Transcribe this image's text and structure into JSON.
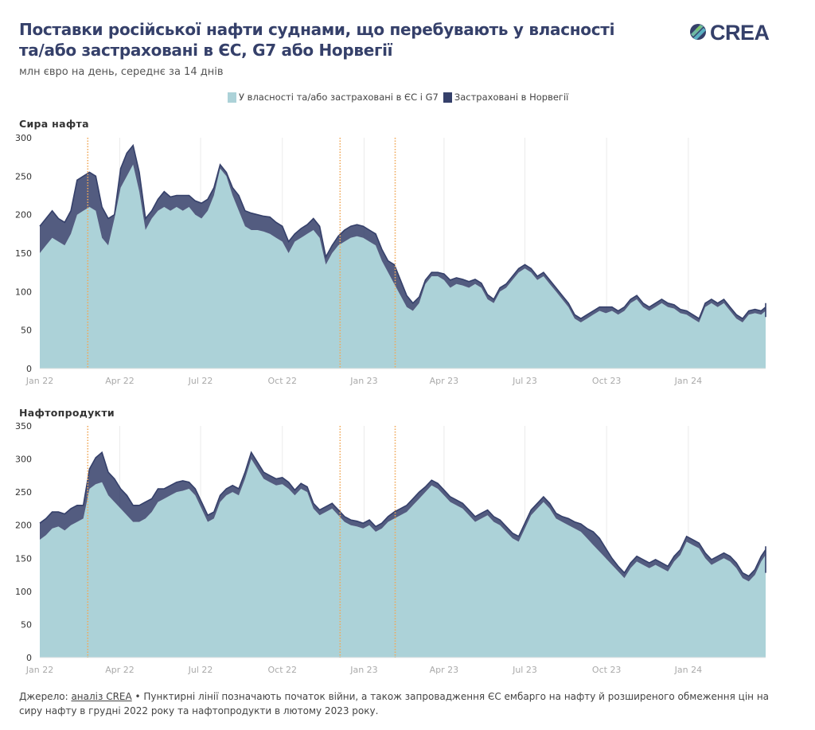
{
  "header": {
    "title": "Поставки російської нафти суднами, що перебувають у власності та/або застраховані в ЄС, G7 або Норвегії",
    "subtitle": "млн євро на день, середнє за 14 днів",
    "logo_text": "CREA",
    "logo_icon": "crea-logo-icon"
  },
  "legend": [
    {
      "label": "У власності та/або застраховані в ЄС і G7",
      "color": "#acd2d8"
    },
    {
      "label": "Застраховані в Норвегії",
      "color": "#35406a"
    }
  ],
  "footer": {
    "source_prefix": "Джерело: ",
    "source_link": "аналіз CREA",
    "note": " • Пунктирні лінії позначають початок війни, а також запровадження ЄС ембарго на нафту й розширеного обмеження цін на сиру нафту в грудні 2022 року та нафтопродукти в лютому 2023 року."
  },
  "chart_data": [
    {
      "type": "area",
      "stacked": true,
      "title": "Сира нафта",
      "xlabel": "",
      "ylabel": "",
      "ylim": [
        0,
        300
      ],
      "yticks": [
        0,
        50,
        100,
        150,
        200,
        250,
        300
      ],
      "xlim": [
        "2022-01-01",
        "2024-03-28"
      ],
      "xticks": [
        {
          "date": "2022-01-01",
          "label": "Jan 22"
        },
        {
          "date": "2022-04-01",
          "label": "Apr 22"
        },
        {
          "date": "2022-07-01",
          "label": "Jul 22"
        },
        {
          "date": "2022-10-01",
          "label": "Oct 22"
        },
        {
          "date": "2023-01-01",
          "label": "Jan 23"
        },
        {
          "date": "2023-04-01",
          "label": "Apr 23"
        },
        {
          "date": "2023-07-01",
          "label": "Jul 23"
        },
        {
          "date": "2023-10-01",
          "label": "Oct 23"
        },
        {
          "date": "2024-01-01",
          "label": "Jan 24"
        }
      ],
      "vlines": [
        "2022-02-24",
        "2022-12-05",
        "2023-02-05"
      ],
      "grid": "vertical",
      "x_start": "2022-01-01",
      "x_step_days": 7,
      "series": [
        {
          "name": "У власності та/або застраховані в ЄС і G7",
          "values": [
            150,
            160,
            170,
            165,
            160,
            175,
            200,
            205,
            210,
            205,
            170,
            160,
            195,
            235,
            250,
            265,
            230,
            180,
            195,
            205,
            210,
            205,
            210,
            205,
            210,
            200,
            195,
            205,
            225,
            260,
            250,
            225,
            205,
            185,
            180,
            180,
            178,
            175,
            170,
            165,
            150,
            165,
            170,
            175,
            180,
            170,
            135,
            150,
            160,
            165,
            170,
            172,
            170,
            165,
            160,
            140,
            125,
            110,
            95,
            80,
            75,
            85,
            110,
            120,
            120,
            115,
            105,
            110,
            108,
            105,
            110,
            105,
            90,
            85,
            100,
            105,
            115,
            125,
            130,
            125,
            115,
            120,
            110,
            100,
            90,
            80,
            65,
            60,
            65,
            70,
            75,
            72,
            75,
            70,
            75,
            85,
            90,
            80,
            75,
            80,
            85,
            80,
            78,
            72,
            70,
            65,
            60,
            80,
            85,
            80,
            85,
            75,
            65,
            60,
            70,
            72,
            70,
            75,
            80,
            75,
            70,
            70,
            72,
            68,
            62
          ]
        },
        {
          "name": "Застраховані в Норвегії",
          "values": [
            35,
            35,
            35,
            30,
            30,
            30,
            45,
            45,
            45,
            45,
            40,
            35,
            5,
            25,
            30,
            25,
            25,
            15,
            10,
            15,
            20,
            18,
            15,
            20,
            15,
            18,
            20,
            15,
            10,
            5,
            5,
            10,
            20,
            20,
            22,
            20,
            20,
            22,
            20,
            20,
            15,
            10,
            12,
            12,
            15,
            15,
            10,
            10,
            12,
            15,
            15,
            15,
            15,
            15,
            15,
            15,
            15,
            25,
            20,
            15,
            10,
            8,
            5,
            5,
            5,
            8,
            10,
            8,
            8,
            8,
            6,
            6,
            6,
            5,
            5,
            5,
            5,
            5,
            5,
            5,
            5,
            5,
            5,
            5,
            5,
            5,
            5,
            5,
            5,
            5,
            5,
            8,
            5,
            5,
            5,
            5,
            5,
            5,
            5,
            5,
            5,
            5,
            5,
            5,
            5,
            5,
            5,
            5,
            5,
            5,
            5,
            5,
            5,
            5,
            5,
            5,
            5,
            5,
            5,
            5,
            5,
            5,
            5,
            5,
            5
          ]
        }
      ]
    },
    {
      "type": "area",
      "stacked": true,
      "title": "Нафтопродукти",
      "xlabel": "",
      "ylabel": "",
      "ylim": [
        0,
        350
      ],
      "yticks": [
        0,
        50,
        100,
        150,
        200,
        250,
        300,
        350
      ],
      "xlim": [
        "2022-01-01",
        "2024-03-28"
      ],
      "xticks": [
        {
          "date": "2022-01-01",
          "label": "Jan 22"
        },
        {
          "date": "2022-04-01",
          "label": "Apr 22"
        },
        {
          "date": "2022-07-01",
          "label": "Jul 22"
        },
        {
          "date": "2022-10-01",
          "label": "Oct 22"
        },
        {
          "date": "2023-01-01",
          "label": "Jan 23"
        },
        {
          "date": "2023-04-01",
          "label": "Apr 23"
        },
        {
          "date": "2023-07-01",
          "label": "Jul 23"
        },
        {
          "date": "2023-10-01",
          "label": "Oct 23"
        },
        {
          "date": "2024-01-01",
          "label": "Jan 24"
        }
      ],
      "vlines": [
        "2022-02-24",
        "2022-12-05",
        "2023-02-05"
      ],
      "grid": "vertical",
      "x_start": "2022-01-01",
      "x_step_days": 7,
      "series": [
        {
          "name": "У власності та/або застраховані в ЄС і G7",
          "values": [
            178,
            185,
            195,
            198,
            192,
            200,
            205,
            210,
            255,
            262,
            265,
            245,
            235,
            225,
            215,
            205,
            205,
            210,
            220,
            235,
            240,
            245,
            250,
            252,
            255,
            245,
            225,
            205,
            210,
            235,
            245,
            250,
            245,
            270,
            300,
            285,
            270,
            265,
            260,
            262,
            255,
            245,
            255,
            250,
            225,
            215,
            220,
            225,
            215,
            205,
            200,
            198,
            195,
            200,
            190,
            195,
            205,
            210,
            215,
            220,
            230,
            240,
            250,
            260,
            255,
            245,
            235,
            230,
            225,
            215,
            205,
            210,
            215,
            205,
            200,
            190,
            180,
            175,
            195,
            215,
            225,
            235,
            225,
            210,
            205,
            200,
            195,
            190,
            180,
            170,
            160,
            150,
            140,
            130,
            120,
            135,
            145,
            140,
            135,
            140,
            135,
            130,
            145,
            155,
            175,
            170,
            165,
            150,
            140,
            145,
            150,
            145,
            135,
            120,
            115,
            125,
            145,
            155,
            160,
            150,
            140,
            145,
            150,
            155,
            145,
            130,
            120,
            125,
            140,
            145,
            140,
            140,
            130,
            120
          ]
        },
        {
          "name": "Застраховані в Норвегії",
          "values": [
            25,
            25,
            25,
            22,
            25,
            25,
            25,
            20,
            30,
            40,
            45,
            35,
            35,
            30,
            30,
            25,
            25,
            25,
            20,
            20,
            15,
            15,
            15,
            15,
            10,
            10,
            10,
            10,
            10,
            10,
            10,
            10,
            10,
            10,
            10,
            10,
            10,
            10,
            10,
            10,
            10,
            8,
            8,
            8,
            8,
            8,
            8,
            8,
            8,
            8,
            8,
            8,
            8,
            8,
            8,
            8,
            8,
            10,
            10,
            10,
            10,
            10,
            8,
            8,
            8,
            8,
            8,
            8,
            8,
            8,
            8,
            8,
            8,
            8,
            8,
            8,
            8,
            8,
            8,
            8,
            8,
            8,
            8,
            8,
            8,
            10,
            10,
            12,
            15,
            20,
            20,
            15,
            10,
            8,
            8,
            8,
            8,
            8,
            8,
            8,
            8,
            8,
            8,
            8,
            8,
            8,
            8,
            8,
            8,
            8,
            8,
            8,
            8,
            8,
            8,
            8,
            8,
            8,
            8,
            8,
            8,
            8,
            8,
            8,
            8,
            8,
            8,
            8,
            8,
            8,
            8,
            8,
            8,
            8
          ]
        }
      ]
    }
  ]
}
